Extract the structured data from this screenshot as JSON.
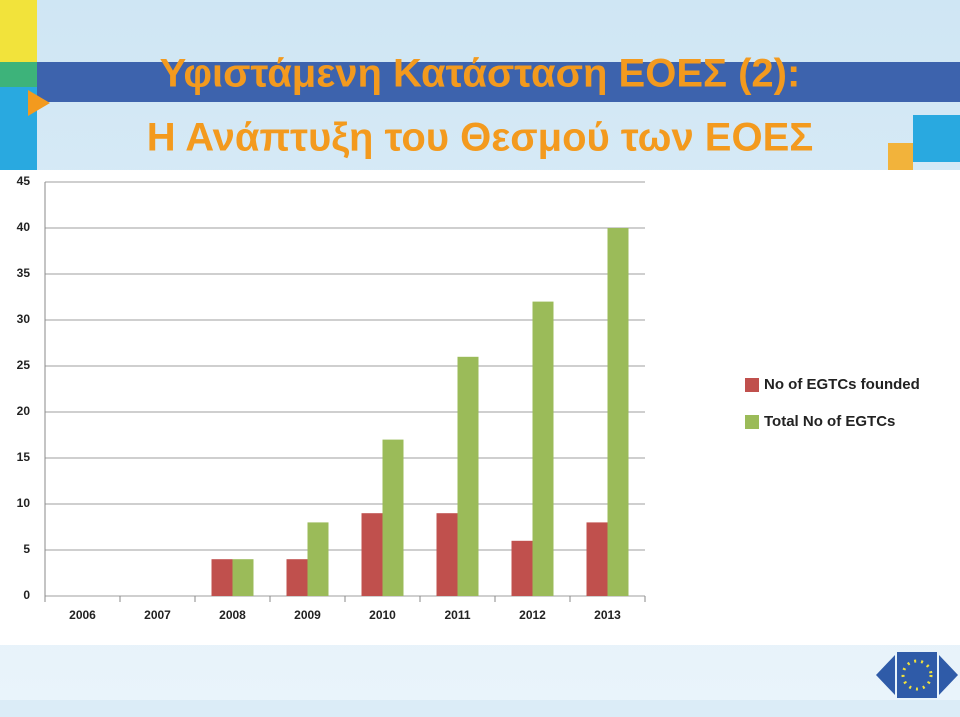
{
  "slide": {
    "title_lines": [
      "Υφιστάμενη Κατάσταση ΕΟΕΣ (2):",
      "Η Ανάπτυξη του Θεσμού των ΕΟΕΣ"
    ]
  },
  "chart_data": {
    "type": "bar",
    "categories": [
      "2006",
      "2007",
      "2008",
      "2009",
      "2010",
      "2011",
      "2012",
      "2013"
    ],
    "series": [
      {
        "name": "No of EGTCs founded",
        "color": "#c0504d",
        "values": [
          0,
          0,
          4,
          4,
          9,
          9,
          6,
          8
        ]
      },
      {
        "name": "Total  No of EGTCs",
        "color": "#9bbb59",
        "values": [
          0,
          0,
          4,
          8,
          17,
          26,
          32,
          40
        ]
      }
    ],
    "ylim": [
      0,
      45
    ],
    "yticks": [
      0,
      5,
      10,
      15,
      20,
      25,
      30,
      35,
      40,
      45
    ],
    "grid": true,
    "legend": "right"
  }
}
